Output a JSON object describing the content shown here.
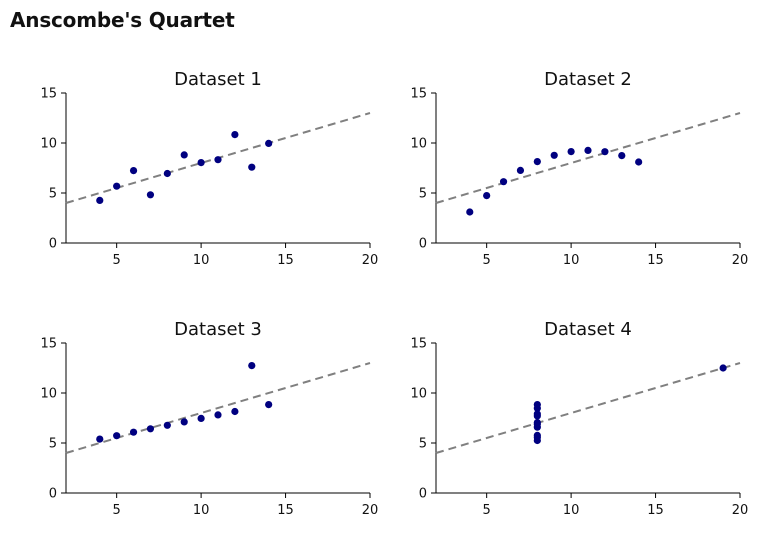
{
  "page": {
    "title": "Anscombe's Quartet"
  },
  "colors": {
    "point": "#000080",
    "fit_line": "#808080",
    "axis": "#000000"
  },
  "chart_data": [
    {
      "type": "scatter",
      "title": "Dataset 1",
      "xlim": [
        2,
        20
      ],
      "ylim": [
        0,
        15
      ],
      "xticks": [
        5,
        10,
        15,
        20
      ],
      "yticks": [
        0,
        5,
        10,
        15
      ],
      "fit_line": {
        "slope": 0.5,
        "intercept": 3.0,
        "x_range": [
          2,
          20
        ]
      },
      "points": [
        {
          "x": 10,
          "y": 8.04
        },
        {
          "x": 8,
          "y": 6.95
        },
        {
          "x": 13,
          "y": 7.58
        },
        {
          "x": 9,
          "y": 8.81
        },
        {
          "x": 11,
          "y": 8.33
        },
        {
          "x": 14,
          "y": 9.96
        },
        {
          "x": 6,
          "y": 7.24
        },
        {
          "x": 4,
          "y": 4.26
        },
        {
          "x": 12,
          "y": 10.84
        },
        {
          "x": 7,
          "y": 4.82
        },
        {
          "x": 5,
          "y": 5.68
        }
      ]
    },
    {
      "type": "scatter",
      "title": "Dataset 2",
      "xlim": [
        2,
        20
      ],
      "ylim": [
        0,
        15
      ],
      "xticks": [
        5,
        10,
        15,
        20
      ],
      "yticks": [
        0,
        5,
        10,
        15
      ],
      "fit_line": {
        "slope": 0.5,
        "intercept": 3.0,
        "x_range": [
          2,
          20
        ]
      },
      "points": [
        {
          "x": 10,
          "y": 9.14
        },
        {
          "x": 8,
          "y": 8.14
        },
        {
          "x": 13,
          "y": 8.74
        },
        {
          "x": 9,
          "y": 8.77
        },
        {
          "x": 11,
          "y": 9.26
        },
        {
          "x": 14,
          "y": 8.1
        },
        {
          "x": 6,
          "y": 6.13
        },
        {
          "x": 4,
          "y": 3.1
        },
        {
          "x": 12,
          "y": 9.13
        },
        {
          "x": 7,
          "y": 7.26
        },
        {
          "x": 5,
          "y": 4.74
        }
      ]
    },
    {
      "type": "scatter",
      "title": "Dataset 3",
      "xlim": [
        2,
        20
      ],
      "ylim": [
        0,
        15
      ],
      "xticks": [
        5,
        10,
        15,
        20
      ],
      "yticks": [
        0,
        5,
        10,
        15
      ],
      "fit_line": {
        "slope": 0.5,
        "intercept": 3.0,
        "x_range": [
          2,
          20
        ]
      },
      "points": [
        {
          "x": 10,
          "y": 7.46
        },
        {
          "x": 8,
          "y": 6.77
        },
        {
          "x": 13,
          "y": 12.74
        },
        {
          "x": 9,
          "y": 7.11
        },
        {
          "x": 11,
          "y": 7.81
        },
        {
          "x": 14,
          "y": 8.84
        },
        {
          "x": 6,
          "y": 6.08
        },
        {
          "x": 4,
          "y": 5.39
        },
        {
          "x": 12,
          "y": 8.15
        },
        {
          "x": 7,
          "y": 6.42
        },
        {
          "x": 5,
          "y": 5.73
        }
      ]
    },
    {
      "type": "scatter",
      "title": "Dataset 4",
      "xlim": [
        2,
        20
      ],
      "ylim": [
        0,
        15
      ],
      "xticks": [
        5,
        10,
        15,
        20
      ],
      "yticks": [
        0,
        5,
        10,
        15
      ],
      "fit_line": {
        "slope": 0.5,
        "intercept": 3.0,
        "x_range": [
          2,
          20
        ]
      },
      "points": [
        {
          "x": 8,
          "y": 6.58
        },
        {
          "x": 8,
          "y": 5.76
        },
        {
          "x": 8,
          "y": 7.71
        },
        {
          "x": 8,
          "y": 8.84
        },
        {
          "x": 8,
          "y": 8.47
        },
        {
          "x": 8,
          "y": 7.04
        },
        {
          "x": 8,
          "y": 5.25
        },
        {
          "x": 19,
          "y": 12.5
        },
        {
          "x": 8,
          "y": 5.56
        },
        {
          "x": 8,
          "y": 7.91
        },
        {
          "x": 8,
          "y": 6.89
        }
      ]
    }
  ]
}
